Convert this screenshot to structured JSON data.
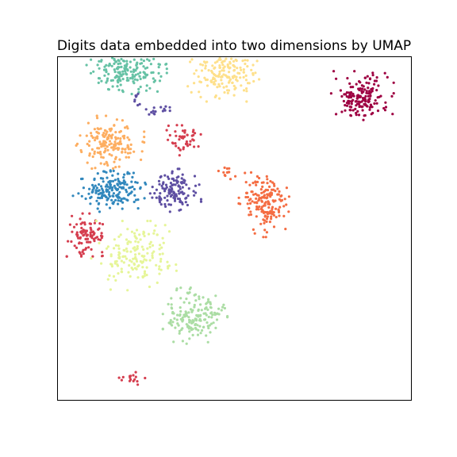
{
  "chart_data": {
    "type": "scatter",
    "title": "Digits data embedded into two dimensions by UMAP",
    "xlabel": "",
    "ylabel": "",
    "xlim": [
      0,
      100
    ],
    "ylim": [
      0,
      100
    ],
    "grid": false,
    "axis_ticks": false,
    "legend": "none",
    "marker": "dot",
    "seed": 7,
    "clusters": [
      {
        "color": "#9e0142",
        "center": [
          86,
          88
        ],
        "spread": [
          3.8,
          3.2
        ],
        "count": 170
      },
      {
        "color": "#d53e4f",
        "center": [
          8.5,
          48
        ],
        "spread": [
          2.4,
          2.6
        ],
        "count": 95
      },
      {
        "color": "#d53e4f",
        "center": [
          36,
          76
        ],
        "spread": [
          2.4,
          2.0
        ],
        "count": 50
      },
      {
        "color": "#d53e4f",
        "center": [
          21,
          6.5
        ],
        "spread": [
          1.6,
          0.9
        ],
        "count": 16
      },
      {
        "color": "#f46d43",
        "center": [
          59,
          57
        ],
        "spread": [
          3.2,
          4.0
        ],
        "count": 170
      },
      {
        "color": "#f46d43",
        "center": [
          47,
          66
        ],
        "spread": [
          1.5,
          1.2
        ],
        "count": 12
      },
      {
        "color": "#fdae61",
        "center": [
          15,
          75
        ],
        "spread": [
          4.0,
          3.2
        ],
        "count": 165
      },
      {
        "color": "#fee08b",
        "center": [
          47,
          95
        ],
        "spread": [
          4.2,
          3.4
        ],
        "count": 170
      },
      {
        "color": "#e6f598",
        "center": [
          22,
          42
        ],
        "spread": [
          5.5,
          4.2
        ],
        "count": 160
      },
      {
        "color": "#abdda4",
        "center": [
          39,
          24.5
        ],
        "spread": [
          3.8,
          3.4
        ],
        "count": 170
      },
      {
        "color": "#66c2a5",
        "center": [
          19.5,
          96
        ],
        "spread": [
          4.8,
          2.9
        ],
        "count": 175
      },
      {
        "color": "#3288bd",
        "center": [
          16,
          61
        ],
        "spread": [
          4.8,
          2.6
        ],
        "count": 175
      },
      {
        "color": "#5e4fa2",
        "center": [
          33.5,
          61
        ],
        "spread": [
          3.0,
          2.6
        ],
        "count": 130
      },
      {
        "color": "#5e4fa2",
        "center": [
          29,
          84
        ],
        "spread": [
          1.6,
          0.8
        ],
        "count": 15
      },
      {
        "color": "#5e4fa2",
        "center": [
          22.5,
          87.5
        ],
        "spread": [
          0.5,
          0.8
        ],
        "count": 8
      }
    ]
  }
}
